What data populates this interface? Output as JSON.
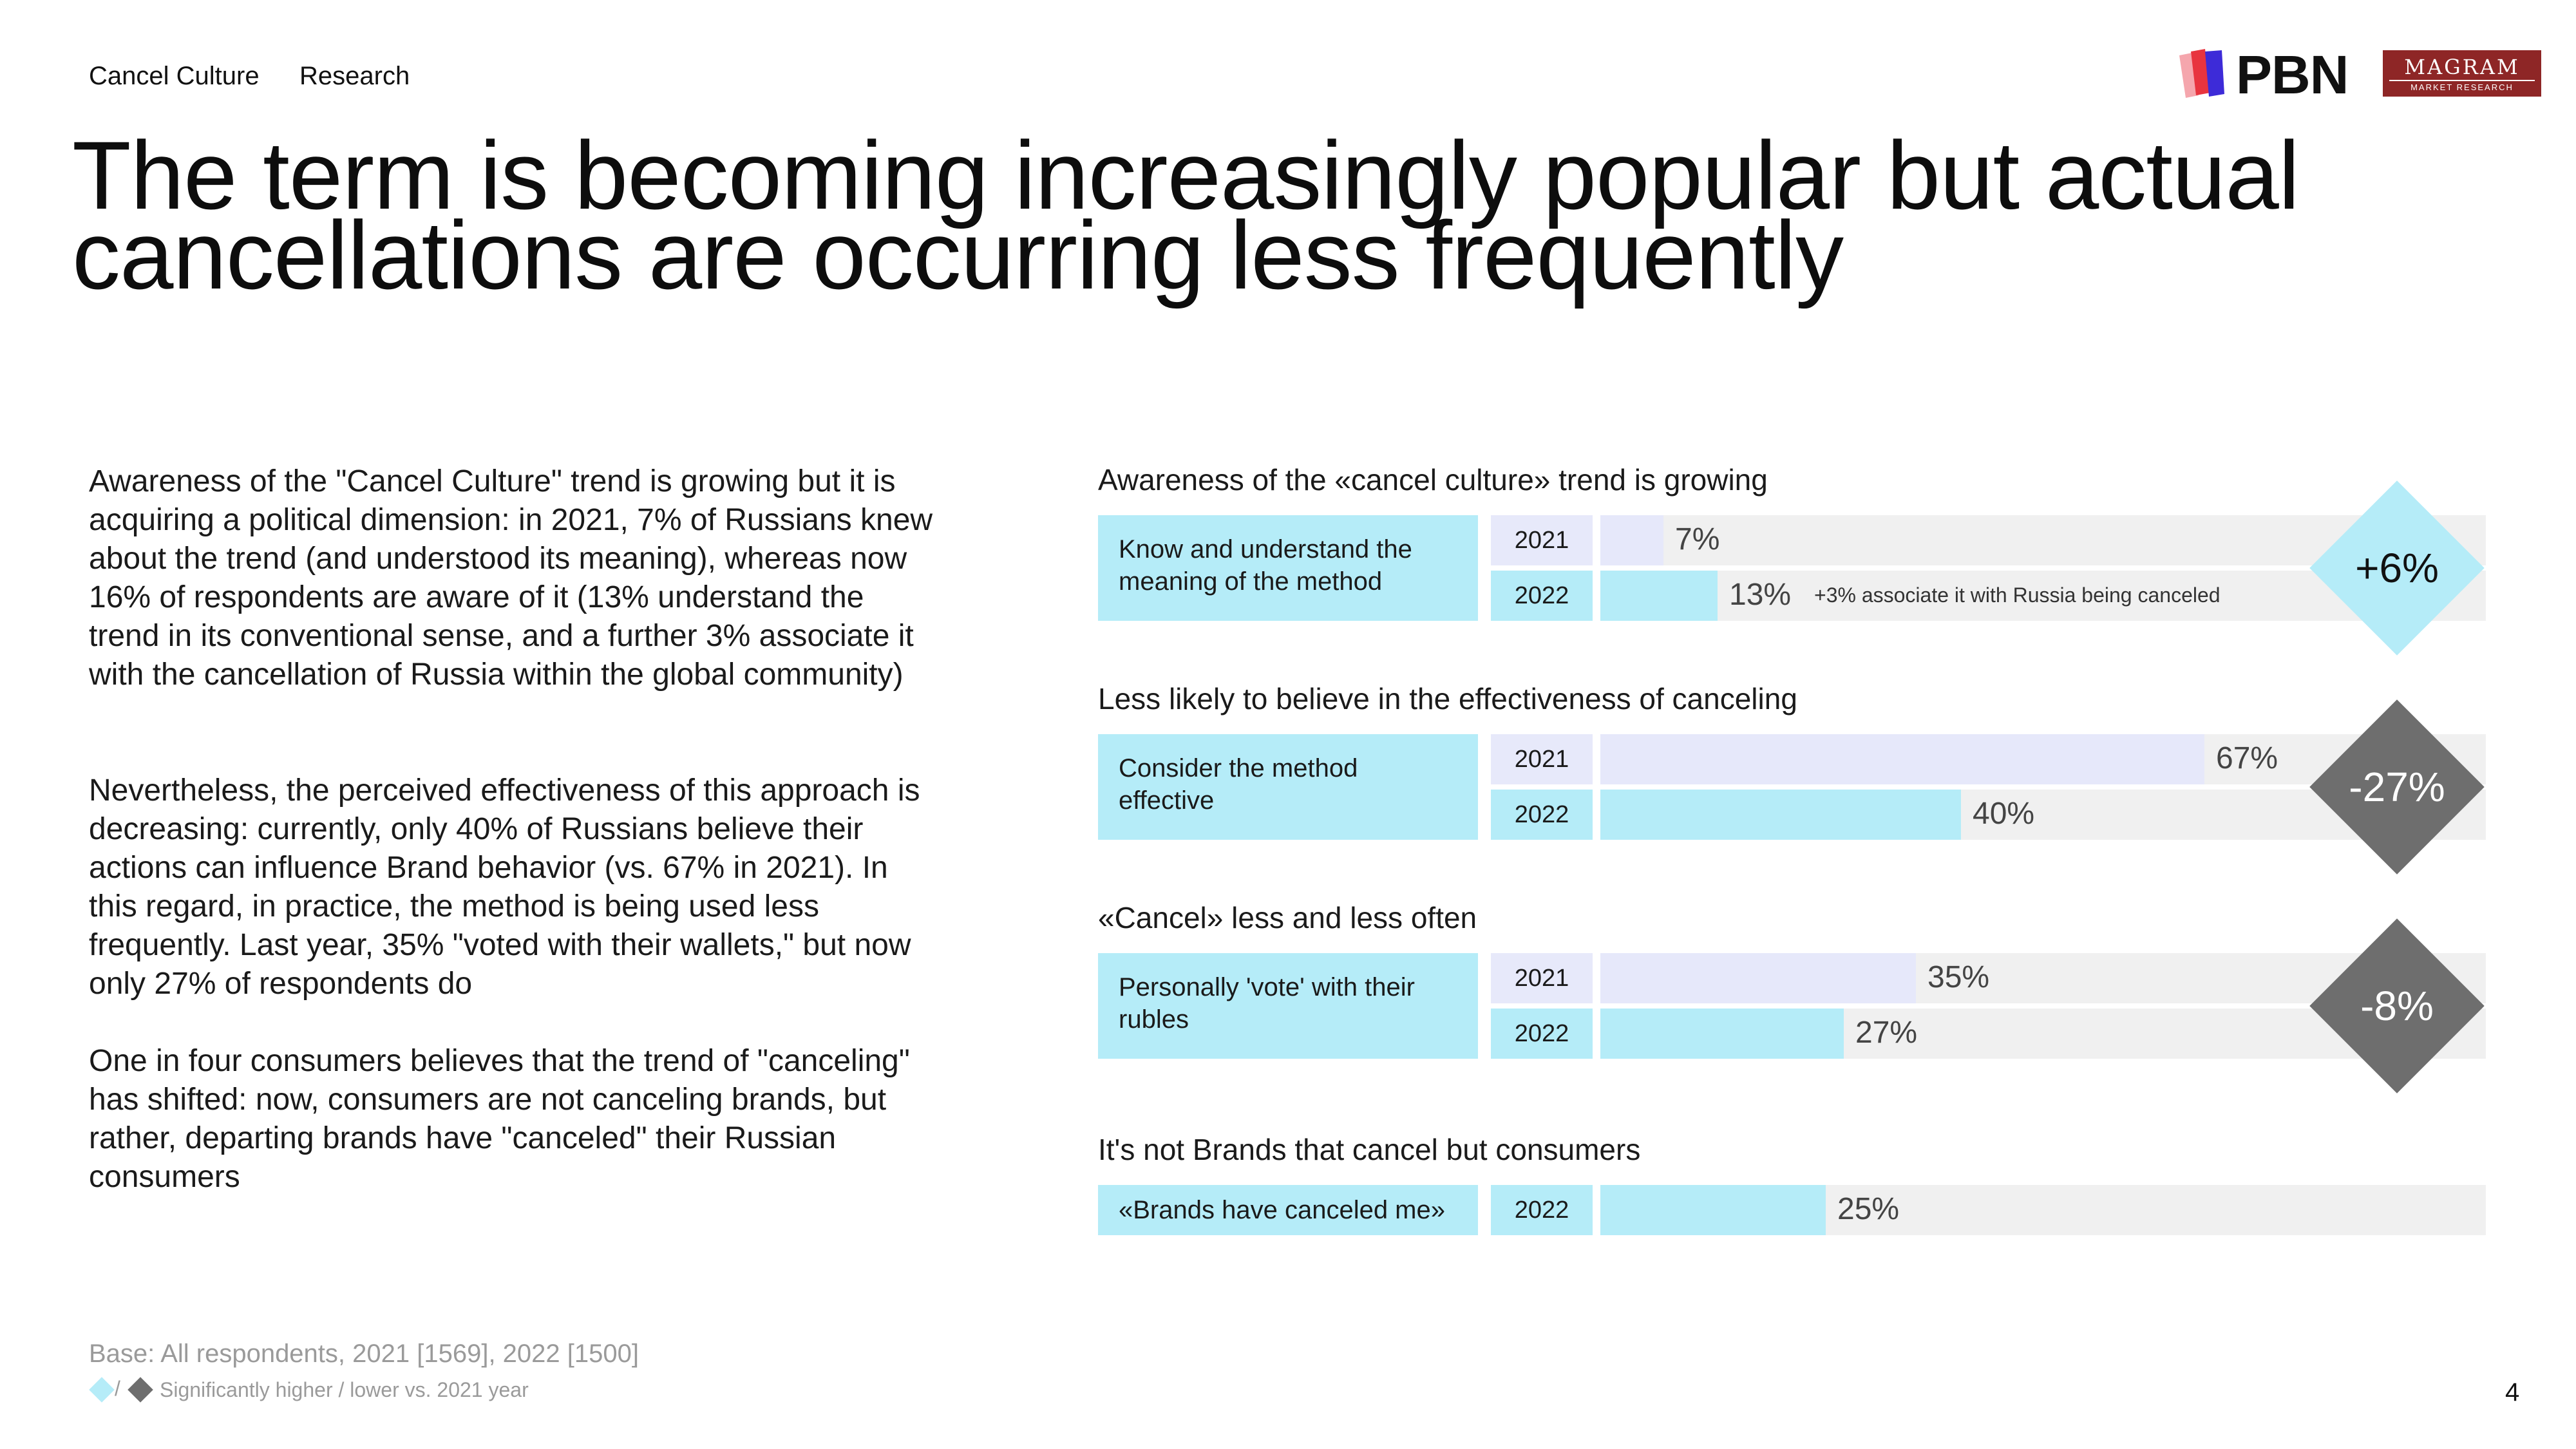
{
  "header": {
    "breadcrumb": [
      "Cancel Culture",
      "Research"
    ],
    "logos": {
      "pbn": "PBN",
      "magram": "MAGRAM",
      "magram_sub": "MARKET RESEARCH"
    },
    "title": "The term is becoming increasingly popular but actual cancellations are occurring less frequently",
    "page_number": "4"
  },
  "body": {
    "paragraphs": [
      "Awareness of the \"Cancel Culture\" trend is growing but it is acquiring a political dimension: in 2021, 7% of Russians knew about the trend (and understood its meaning), whereas now 16% of respondents are aware of it (13% understand the trend in its conventional sense, and a further 3% associate it with the cancellation of Russia within the global community)",
      "Nevertheless, the perceived effectiveness of this approach is decreasing: currently, only 40% of Russians believe their actions can influence Brand behavior (vs. 67% in 2021). In this regard, in practice, the method is being used less frequently. Last year, 35% \"voted with their wallets,\" but now only 27% of respondents do",
      "One in four consumers believes that the trend of \"canceling\" has shifted: now, consumers are not canceling brands, but rather, departing brands have \"canceled\" their Russian consumers"
    ]
  },
  "footer": {
    "base": "Base: All respondents, 2021 [1569], 2022 [1500]",
    "legend_slash": "/",
    "legend": "Significantly higher / lower vs. 2021 year",
    "colors": {
      "higher": "#b5ecf8",
      "lower": "#6e6e6e"
    }
  },
  "chart_data": {
    "type": "bar",
    "orientation": "horizontal",
    "xlim": [
      0,
      100
    ],
    "unit": "%",
    "grid": false,
    "colors": {
      "2021": "#e6e8fa",
      "2022": "#b5ecf8",
      "track": "#f0f0f0",
      "up": "#b5ecf8",
      "down": "#6e6e6e"
    },
    "sections": [
      {
        "title": "Awareness of the «cancel culture» trend is growing",
        "category": "Know and understand the meaning of the method",
        "rows": [
          {
            "year": "2021",
            "value": 7,
            "label": "7%"
          },
          {
            "year": "2022",
            "value": 13,
            "label": "13%",
            "note": "+3% associate it with Russia being canceled"
          }
        ],
        "diff": {
          "label": "+6%",
          "direction": "up"
        }
      },
      {
        "title": "Less likely to believe in the effectiveness of canceling",
        "category": "Consider the method effective",
        "rows": [
          {
            "year": "2021",
            "value": 67,
            "label": "67%"
          },
          {
            "year": "2022",
            "value": 40,
            "label": "40%"
          }
        ],
        "diff": {
          "label": "-27%",
          "direction": "down"
        }
      },
      {
        "title": "«Cancel» less and less often",
        "category": "Personally 'vote' with their rubles",
        "rows": [
          {
            "year": "2021",
            "value": 35,
            "label": "35%"
          },
          {
            "year": "2022",
            "value": 27,
            "label": "27%"
          }
        ],
        "diff": {
          "label": "-8%",
          "direction": "down"
        }
      },
      {
        "title": "It's not Brands that cancel but consumers",
        "category": "«Brands have canceled me»",
        "rows": [
          {
            "year": "2022",
            "value": 25,
            "label": "25%"
          }
        ]
      }
    ]
  }
}
